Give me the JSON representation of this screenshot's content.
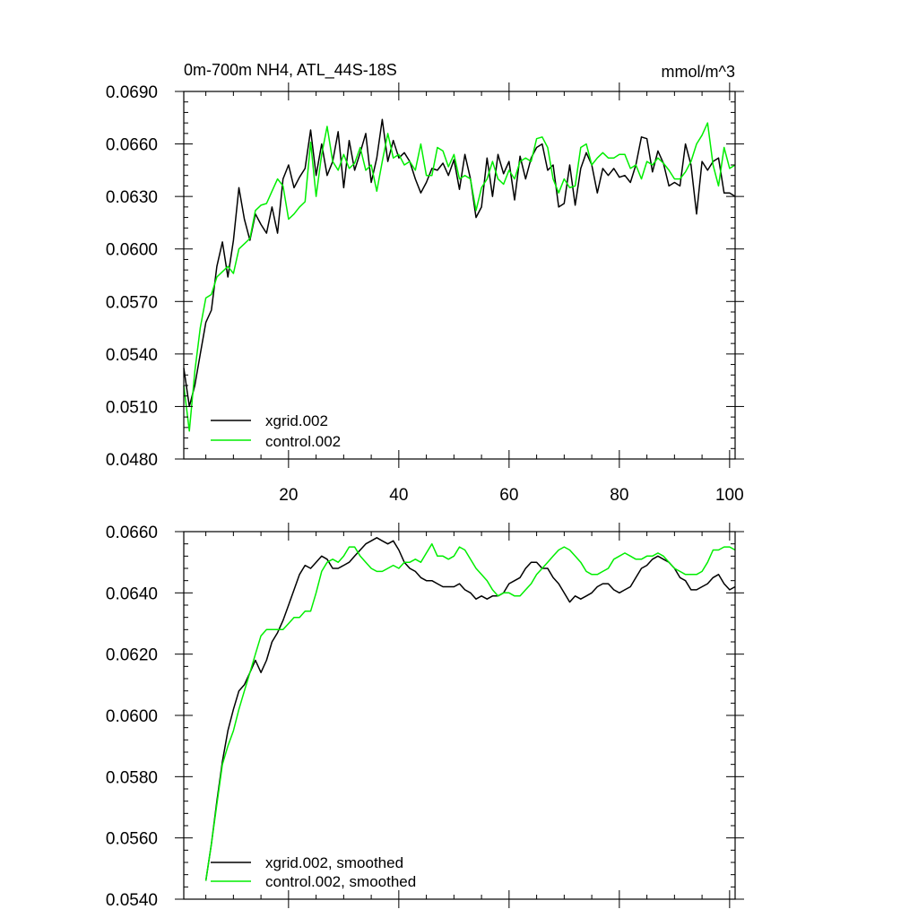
{
  "chart_data": [
    {
      "type": "line",
      "title": "0m-700m NH4, ATL_44S-18S",
      "units": "mmol/m^3",
      "xlim": [
        1,
        101
      ],
      "ylim": [
        0.048,
        0.069
      ],
      "xticks": [
        20,
        40,
        60,
        80,
        100
      ],
      "xtick_labels": [
        "20",
        "40",
        "60",
        "80",
        "100"
      ],
      "yticks": [
        0.048,
        0.051,
        0.054,
        0.057,
        0.06,
        0.063,
        0.066,
        0.069
      ],
      "ytick_labels": [
        "0.0480",
        "0.0510",
        "0.0540",
        "0.0570",
        "0.0600",
        "0.0630",
        "0.0660",
        "0.0690"
      ],
      "legend_position": "lower-left",
      "series": [
        {
          "name": "xgrid.002",
          "color": "#000000",
          "values": [
            0.0532,
            0.051,
            0.0522,
            0.054,
            0.0558,
            0.0565,
            0.059,
            0.0604,
            0.0584,
            0.0605,
            0.0635,
            0.0617,
            0.0605,
            0.062,
            0.0614,
            0.0609,
            0.0624,
            0.0609,
            0.064,
            0.0648,
            0.0635,
            0.0641,
            0.0646,
            0.0668,
            0.0642,
            0.066,
            0.0642,
            0.065,
            0.0667,
            0.0635,
            0.0662,
            0.0645,
            0.0655,
            0.0666,
            0.0638,
            0.0652,
            0.0674,
            0.065,
            0.0662,
            0.0652,
            0.0655,
            0.065,
            0.064,
            0.0632,
            0.0638,
            0.0646,
            0.0645,
            0.0649,
            0.0642,
            0.0651,
            0.0634,
            0.0654,
            0.064,
            0.0618,
            0.0624,
            0.0652,
            0.063,
            0.0654,
            0.0643,
            0.065,
            0.0628,
            0.0653,
            0.064,
            0.0652,
            0.0658,
            0.066,
            0.0645,
            0.0648,
            0.0624,
            0.0626,
            0.0648,
            0.0625,
            0.0646,
            0.0655,
            0.0648,
            0.0632,
            0.0646,
            0.0642,
            0.0646,
            0.0641,
            0.0642,
            0.0638,
            0.0648,
            0.0664,
            0.0663,
            0.0644,
            0.0656,
            0.0649,
            0.0636,
            0.0638,
            0.0636,
            0.066,
            0.0648,
            0.062,
            0.065,
            0.0645,
            0.065,
            0.0652,
            0.0632,
            0.0632,
            0.063
          ]
        },
        {
          "name": "control.002",
          "color": "#00ee00",
          "values": [
            0.0522,
            0.0496,
            0.053,
            0.0555,
            0.0572,
            0.0574,
            0.0584,
            0.0587,
            0.059,
            0.0586,
            0.06,
            0.0603,
            0.0606,
            0.0622,
            0.0625,
            0.0626,
            0.0633,
            0.064,
            0.0636,
            0.0617,
            0.062,
            0.0624,
            0.0627,
            0.0661,
            0.063,
            0.0654,
            0.067,
            0.065,
            0.0645,
            0.0654,
            0.0646,
            0.0649,
            0.0658,
            0.0645,
            0.0648,
            0.0633,
            0.065,
            0.0666,
            0.0652,
            0.0654,
            0.0648,
            0.065,
            0.0645,
            0.066,
            0.0642,
            0.0642,
            0.0658,
            0.0656,
            0.0647,
            0.0654,
            0.064,
            0.0642,
            0.064,
            0.0622,
            0.0635,
            0.064,
            0.065,
            0.064,
            0.0637,
            0.0645,
            0.064,
            0.065,
            0.0652,
            0.065,
            0.0663,
            0.0664,
            0.0658,
            0.064,
            0.0632,
            0.064,
            0.0635,
            0.0636,
            0.0658,
            0.066,
            0.0648,
            0.0652,
            0.0655,
            0.0652,
            0.0652,
            0.0654,
            0.0654,
            0.0646,
            0.0648,
            0.064,
            0.065,
            0.0648,
            0.0652,
            0.0649,
            0.0645,
            0.064,
            0.064,
            0.0644,
            0.065,
            0.066,
            0.0665,
            0.0672,
            0.0648,
            0.0636,
            0.0658,
            0.0646,
            0.0648
          ]
        }
      ]
    },
    {
      "type": "line",
      "xlim": [
        1,
        101
      ],
      "ylim": [
        0.054,
        0.066
      ],
      "xticks": [
        20,
        40,
        60,
        80,
        100
      ],
      "yticks": [
        0.054,
        0.056,
        0.058,
        0.06,
        0.062,
        0.064,
        0.066
      ],
      "ytick_labels": [
        "0.0540",
        "0.0560",
        "0.0580",
        "0.0600",
        "0.0620",
        "0.0640",
        "0.0660"
      ],
      "legend_position": "lower-left",
      "series": [
        {
          "name": "xgrid.002, smoothed",
          "color": "#000000",
          "x_start": 5,
          "values": [
            0.0546,
            0.0558,
            0.0572,
            0.0585,
            0.0595,
            0.0602,
            0.0608,
            0.061,
            0.0614,
            0.0618,
            0.0614,
            0.0618,
            0.0624,
            0.0627,
            0.0631,
            0.0636,
            0.0641,
            0.0646,
            0.0649,
            0.0648,
            0.065,
            0.0652,
            0.0651,
            0.0648,
            0.0648,
            0.0649,
            0.065,
            0.0652,
            0.0654,
            0.0656,
            0.0657,
            0.0658,
            0.0657,
            0.0656,
            0.0657,
            0.0654,
            0.065,
            0.0648,
            0.0647,
            0.0645,
            0.0644,
            0.0644,
            0.0643,
            0.0642,
            0.0642,
            0.0642,
            0.0643,
            0.0641,
            0.064,
            0.0638,
            0.0639,
            0.0638,
            0.0639,
            0.0639,
            0.064,
            0.0643,
            0.0644,
            0.0645,
            0.0648,
            0.065,
            0.065,
            0.0648,
            0.0648,
            0.0645,
            0.0643,
            0.064,
            0.0637,
            0.0639,
            0.0638,
            0.0639,
            0.064,
            0.0642,
            0.0643,
            0.0643,
            0.0641,
            0.064,
            0.0641,
            0.0642,
            0.0645,
            0.0648,
            0.0649,
            0.0651,
            0.0652,
            0.0651,
            0.065,
            0.0648,
            0.0645,
            0.0644,
            0.0641,
            0.0641,
            0.0642,
            0.0643,
            0.0645,
            0.0646,
            0.0643,
            0.0641,
            0.0642
          ]
        },
        {
          "name": "control.002, smoothed",
          "color": "#00ee00",
          "x_start": 5,
          "values": [
            0.0546,
            0.0558,
            0.0571,
            0.0584,
            0.059,
            0.0595,
            0.0602,
            0.0608,
            0.0614,
            0.062,
            0.0626,
            0.0628,
            0.0628,
            0.0628,
            0.0628,
            0.063,
            0.0632,
            0.0632,
            0.0634,
            0.0634,
            0.064,
            0.0647,
            0.065,
            0.0651,
            0.065,
            0.0652,
            0.0655,
            0.0655,
            0.0652,
            0.065,
            0.0648,
            0.0647,
            0.0647,
            0.0648,
            0.0649,
            0.0648,
            0.065,
            0.065,
            0.0651,
            0.065,
            0.0653,
            0.0656,
            0.0652,
            0.0652,
            0.0651,
            0.0652,
            0.0655,
            0.0654,
            0.0651,
            0.0648,
            0.0646,
            0.0644,
            0.0641,
            0.0639,
            0.064,
            0.064,
            0.0639,
            0.0639,
            0.0641,
            0.0643,
            0.0646,
            0.0648,
            0.065,
            0.0652,
            0.0654,
            0.0655,
            0.0654,
            0.0652,
            0.065,
            0.0647,
            0.0646,
            0.0646,
            0.0647,
            0.0648,
            0.0651,
            0.0652,
            0.0653,
            0.0652,
            0.0651,
            0.0651,
            0.0652,
            0.0652,
            0.0653,
            0.0652,
            0.065,
            0.0648,
            0.0647,
            0.0646,
            0.0646,
            0.0646,
            0.0647,
            0.065,
            0.0654,
            0.0654,
            0.0655,
            0.0655,
            0.0654
          ]
        }
      ]
    }
  ]
}
